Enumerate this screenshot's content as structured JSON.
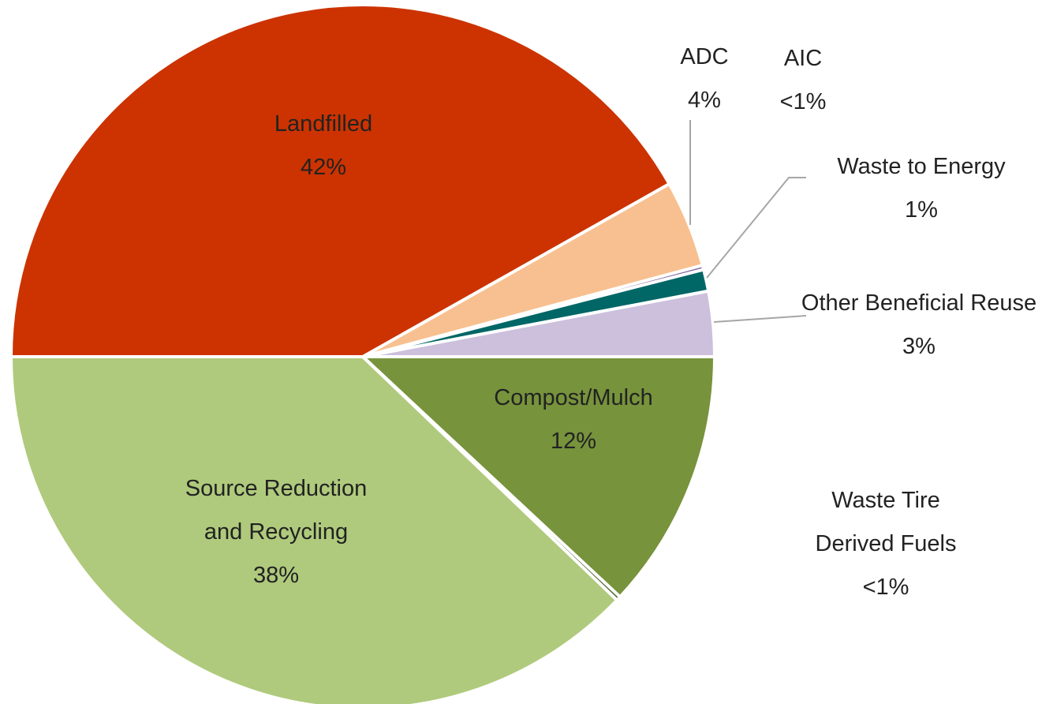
{
  "chart_data": {
    "type": "pie",
    "categories": [
      "Landfilled",
      "ADC",
      "AIC",
      "Waste to Energy",
      "Other Beneficial Reuse",
      "Compost/Mulch",
      "Waste Tire Derived Fuels",
      "Source Reduction and Recycling"
    ],
    "values": [
      42,
      4,
      0.2,
      1,
      3,
      12,
      0.2,
      38
    ],
    "value_labels": [
      "42%",
      "4%",
      "<1%",
      "1%",
      "3%",
      "12%",
      "<1%",
      "38%"
    ],
    "colors": [
      "#cc3300",
      "#f8c090",
      "#8064a2",
      "#006666",
      "#ccc0dc",
      "#77933c",
      "#4f6228",
      "#afca7c"
    ]
  }
}
